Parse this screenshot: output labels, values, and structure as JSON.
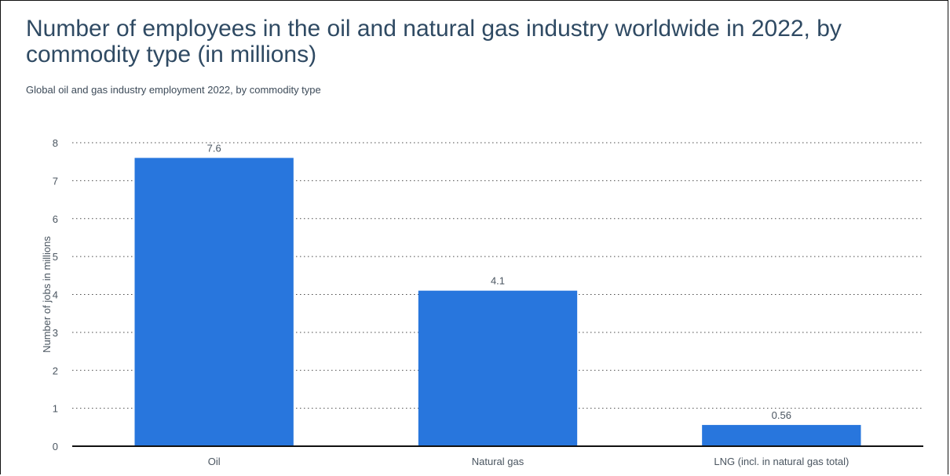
{
  "title": "Number of employees in the oil and natural gas industry worldwide in 2022, by commodity type (in millions)",
  "subtitle": "Global oil and gas industry employment 2022, by commodity type",
  "chart_data": {
    "type": "bar",
    "title": "Number of employees in the oil and natural gas industry worldwide in 2022, by commodity type (in millions)",
    "subtitle": "Global oil and gas industry employment 2022, by commodity type",
    "categories": [
      "Oil",
      "Natural gas",
      "LNG (incl. in natural gas total)"
    ],
    "values": [
      7.6,
      4.1,
      0.56
    ],
    "data_labels": [
      "7.6",
      "4.1",
      "0.56"
    ],
    "xlabel": "",
    "ylabel": "Number of jobs in millions",
    "ylim": [
      0,
      8
    ],
    "yticks": [
      0,
      1,
      2,
      3,
      4,
      5,
      6,
      7,
      8
    ],
    "grid": true,
    "grid_style": "dotted",
    "legend": "none",
    "bar_color": "#2876dd"
  }
}
